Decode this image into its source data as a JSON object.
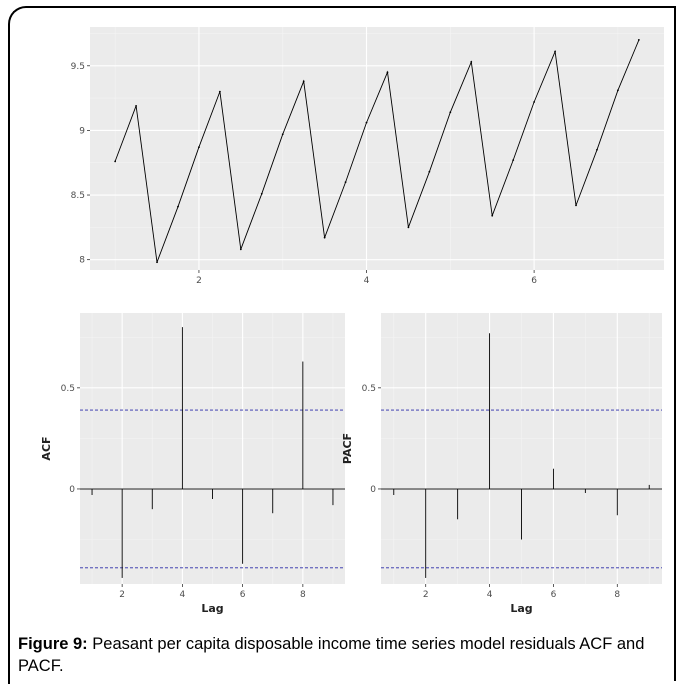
{
  "chart_data": [
    {
      "type": "line",
      "x": [
        1.0,
        1.25,
        1.5,
        1.75,
        2.0,
        2.25,
        2.5,
        2.75,
        3.0,
        3.25,
        3.5,
        3.75,
        4.0,
        4.25,
        4.5,
        4.75,
        5.0,
        5.25,
        5.5,
        5.75,
        6.0,
        6.25,
        6.5,
        6.75,
        7.0,
        7.25
      ],
      "y": [
        8.76,
        9.19,
        7.98,
        8.41,
        8.87,
        9.3,
        8.08,
        8.51,
        8.97,
        9.38,
        8.17,
        8.6,
        9.06,
        9.45,
        8.25,
        8.68,
        9.14,
        9.53,
        8.34,
        8.77,
        9.22,
        9.61,
        8.42,
        8.85,
        9.31,
        9.7
      ],
      "xticks": [
        2,
        4,
        6
      ],
      "yticks": [
        8.0,
        8.5,
        9.0,
        9.5
      ],
      "xlim": [
        0.7,
        7.55
      ],
      "ylim": [
        7.92,
        9.8
      ],
      "grid": true
    },
    {
      "type": "bar",
      "x": [
        1,
        2,
        3,
        4,
        5,
        6,
        7,
        8,
        9
      ],
      "values": [
        -0.03,
        -0.44,
        -0.1,
        0.8,
        -0.05,
        -0.37,
        -0.12,
        0.63,
        -0.08
      ],
      "conf_band": 0.39,
      "xlabel": "Lag",
      "ylabel": "ACF",
      "xticks": [
        2,
        4,
        6,
        8
      ],
      "yticks": [
        0.0,
        0.5
      ],
      "xlim": [
        0.6,
        9.4
      ],
      "ylim": [
        -0.47,
        0.87
      ],
      "grid": true
    },
    {
      "type": "bar",
      "x": [
        1,
        2,
        3,
        4,
        5,
        6,
        7,
        8,
        9
      ],
      "values": [
        -0.03,
        -0.44,
        -0.15,
        0.77,
        -0.25,
        0.1,
        -0.02,
        -0.13,
        0.02
      ],
      "conf_band": 0.39,
      "xlabel": "Lag",
      "ylabel": "PACF",
      "xticks": [
        2,
        4,
        6,
        8
      ],
      "yticks": [
        0.0,
        0.5
      ],
      "xlim": [
        0.6,
        9.4
      ],
      "ylim": [
        -0.47,
        0.87
      ],
      "grid": true
    }
  ],
  "colors": {
    "panel_bg": "#ebebeb",
    "grid_major": "#ffffff",
    "line": "#000000",
    "conf_line": "#2a2aa8",
    "axis_text": "#4d4d4d"
  },
  "caption": {
    "label": "Figure 9:",
    "text": " Peasant per capita disposable income time series model residuals ACF and PACF."
  }
}
